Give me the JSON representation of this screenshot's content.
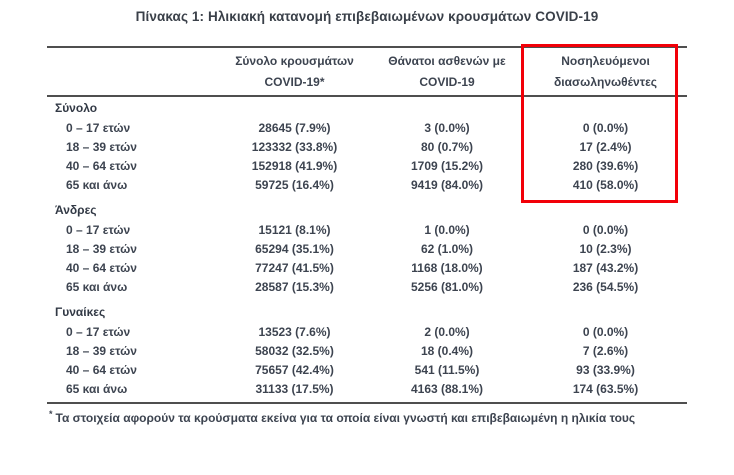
{
  "title": "Πίνακας 1: Ηλικιακή κατανομή επιβεβαιωμένων κρουσμάτων COVID-19",
  "table": {
    "col_headers": [
      {
        "line1": "Σύνολο κρουσμάτων",
        "line2": "COVID-19*"
      },
      {
        "line1": "Θάνατοι ασθενών με",
        "line2": "COVID-19"
      },
      {
        "line1": "Νοσηλευόμενοι",
        "line2": "διασωληνωθέντες"
      }
    ],
    "sections": [
      {
        "label": "Σύνολο",
        "rows": [
          {
            "age": "0 – 17 ετών",
            "cases": "28645 (7.9%)",
            "deaths": "3 (0.0%)",
            "intubated": "0 (0.0%)"
          },
          {
            "age": "18 – 39 ετών",
            "cases": "123332 (33.8%)",
            "deaths": "80 (0.7%)",
            "intubated": "17 (2.4%)"
          },
          {
            "age": "40 – 64 ετών",
            "cases": "152918 (41.9%)",
            "deaths": "1709 (15.2%)",
            "intubated": "280 (39.6%)"
          },
          {
            "age": "65 και άνω",
            "cases": "59725 (16.4%)",
            "deaths": "9419 (84.0%)",
            "intubated": "410 (58.0%)"
          }
        ]
      },
      {
        "label": "Άνδρες",
        "rows": [
          {
            "age": "0 – 17 ετών",
            "cases": "15121 (8.1%)",
            "deaths": "1 (0.0%)",
            "intubated": "0 (0.0%)"
          },
          {
            "age": "18 – 39 ετών",
            "cases": "65294 (35.1%)",
            "deaths": "62 (1.0%)",
            "intubated": "10 (2.3%)"
          },
          {
            "age": "40 – 64 ετών",
            "cases": "77247 (41.5%)",
            "deaths": "1168 (18.0%)",
            "intubated": "187 (43.2%)"
          },
          {
            "age": "65 και άνω",
            "cases": "28587 (15.3%)",
            "deaths": "5256 (81.0%)",
            "intubated": "236 (54.5%)"
          }
        ]
      },
      {
        "label": "Γυναίκες",
        "rows": [
          {
            "age": "0 – 17 ετών",
            "cases": "13523 (7.6%)",
            "deaths": "2 (0.0%)",
            "intubated": "0 (0.0%)"
          },
          {
            "age": "18 – 39 ετών",
            "cases": "58032 (32.5%)",
            "deaths": "18 (0.4%)",
            "intubated": "7 (2.6%)"
          },
          {
            "age": "40 – 64 ετών",
            "cases": "75657 (42.4%)",
            "deaths": "541 (11.5%)",
            "intubated": "93 (33.9%)"
          },
          {
            "age": "65 και άνω",
            "cases": "31133 (17.5%)",
            "deaths": "4163 (88.1%)",
            "intubated": "174 (63.5%)"
          }
        ]
      }
    ],
    "footnote_marker": "*",
    "footnote": "Τα στοιχεία αφορούν τα κρούσματα εκείνα για τα οποία είναι γνωστή και επιβεβαιωμένη η ηλικία τους"
  },
  "highlight": {
    "color": "#f20008",
    "column": "Νοσηλευόμενοι διασωληνωθέντες"
  }
}
